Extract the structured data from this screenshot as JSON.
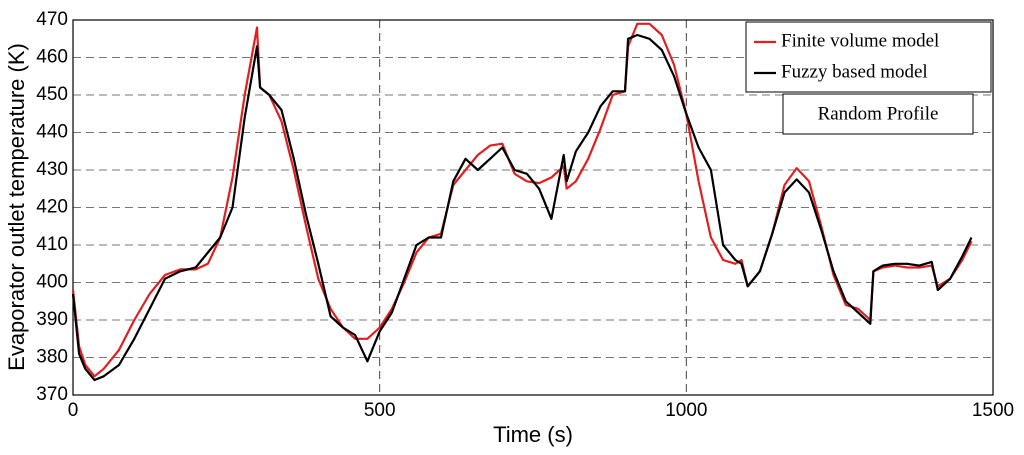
{
  "chart_data": {
    "type": "line",
    "xlabel": "Time (s)",
    "ylabel": "Evaporator outlet temperature (K)",
    "annotation": "Random Profile",
    "x": [
      0,
      10,
      20,
      35,
      50,
      75,
      100,
      125,
      150,
      175,
      200,
      220,
      240,
      260,
      280,
      300,
      305,
      320,
      340,
      360,
      380,
      400,
      420,
      440,
      460,
      480,
      500,
      520,
      540,
      560,
      580,
      600,
      620,
      640,
      660,
      680,
      700,
      720,
      740,
      760,
      780,
      800,
      805,
      820,
      840,
      860,
      880,
      900,
      905,
      920,
      940,
      960,
      980,
      1000,
      1020,
      1040,
      1060,
      1080,
      1090,
      1100,
      1120,
      1140,
      1160,
      1180,
      1200,
      1220,
      1240,
      1260,
      1280,
      1300,
      1305,
      1320,
      1340,
      1360,
      1380,
      1400,
      1410,
      1430,
      1450,
      1465
    ],
    "series": [
      {
        "name": "Finite volume model",
        "color": "#e02020",
        "values": [
          398,
          383,
          378,
          375,
          377,
          382,
          390,
          397,
          402,
          403.5,
          403.5,
          405,
          412,
          428,
          450,
          468,
          452,
          450,
          443,
          430,
          415,
          401,
          393,
          388,
          385,
          385,
          388,
          393,
          400,
          408,
          412,
          413,
          426,
          430,
          434,
          436.5,
          437,
          429,
          427,
          426.5,
          428,
          431,
          425,
          427,
          433,
          441,
          450,
          451,
          463,
          469,
          469,
          466,
          458,
          445,
          427,
          412,
          406,
          405,
          406,
          399,
          403,
          413,
          426,
          430.5,
          427,
          415,
          402,
          394,
          393,
          390,
          403,
          404,
          404.5,
          404,
          404,
          404.5,
          399,
          401,
          406,
          411
        ]
      },
      {
        "name": "Fuzzy based model",
        "color": "#000000",
        "values": [
          397,
          381,
          377,
          374,
          375,
          378,
          385,
          393,
          401,
          403,
          404,
          408,
          412,
          420,
          444,
          463,
          452,
          450,
          446,
          433,
          418,
          405,
          391,
          388,
          386,
          379,
          387,
          392,
          401,
          410,
          412,
          412,
          427,
          433,
          430,
          433,
          436,
          430,
          429,
          425,
          417,
          434,
          427,
          435,
          440,
          447,
          451,
          451,
          465,
          466,
          465,
          462,
          455,
          445,
          436,
          430,
          410,
          406,
          405,
          399,
          403,
          413,
          424,
          427.5,
          424,
          414,
          403,
          395,
          392,
          389,
          403,
          404.5,
          405,
          405,
          404.5,
          405.5,
          398,
          401,
          407,
          412
        ]
      }
    ],
    "xlim": [
      0,
      1500
    ],
    "xticks": [
      0,
      500,
      1000,
      1500
    ],
    "ylim": [
      370,
      470
    ],
    "yticks": [
      370,
      380,
      390,
      400,
      410,
      420,
      430,
      440,
      450,
      460,
      470
    ],
    "grid": true,
    "legend": "upper right"
  }
}
